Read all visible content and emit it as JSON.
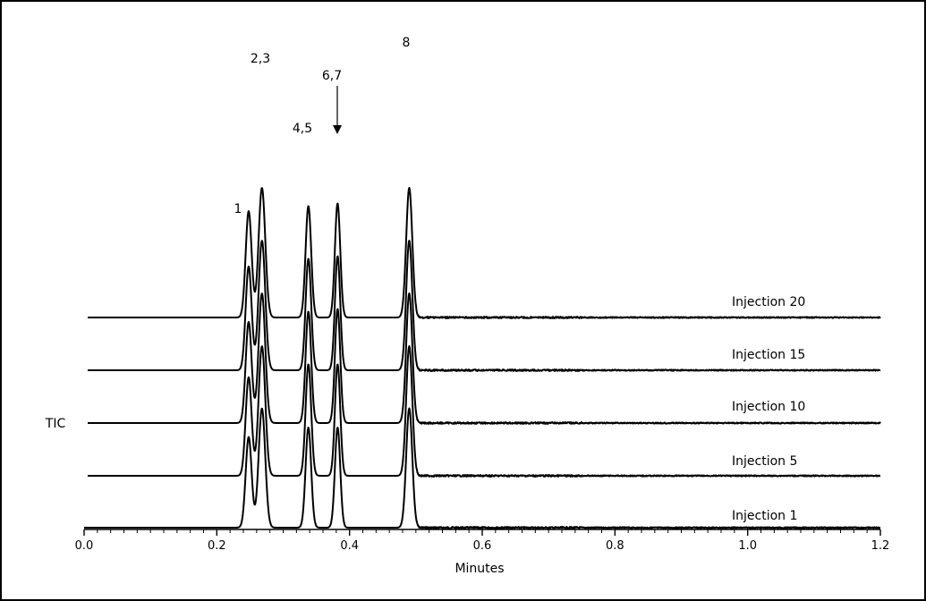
{
  "chart_data": {
    "type": "line",
    "xlabel": "Minutes",
    "ylabel": "TIC",
    "xlim": [
      0.0,
      1.2
    ],
    "x_ticks": [
      "0.0",
      "0.2",
      "0.4",
      "0.6",
      "0.8",
      "1.0",
      "1.2"
    ],
    "series": [
      {
        "name": "Injection 1",
        "peak_heights": [
          0.76,
          1.0,
          0.84,
          0.84,
          1.0
        ]
      },
      {
        "name": "Injection 5",
        "peak_heights": [
          0.76,
          1.0,
          0.86,
          0.86,
          1.0
        ]
      },
      {
        "name": "Injection 10",
        "peak_heights": [
          0.78,
          1.0,
          0.86,
          0.88,
          1.0
        ]
      },
      {
        "name": "Injection 15",
        "peak_heights": [
          0.8,
          1.0,
          0.86,
          0.88,
          1.0
        ]
      },
      {
        "name": "Injection 20",
        "peak_heights": [
          0.82,
          1.0,
          0.86,
          0.88,
          1.0
        ]
      }
    ],
    "peaks": [
      {
        "label": "1",
        "x": 0.248
      },
      {
        "label": "2,3",
        "x": 0.268
      },
      {
        "label": "4,5",
        "x": 0.338
      },
      {
        "label": "6,7",
        "x": 0.382
      },
      {
        "label": "8",
        "x": 0.49
      }
    ],
    "grid": false
  }
}
